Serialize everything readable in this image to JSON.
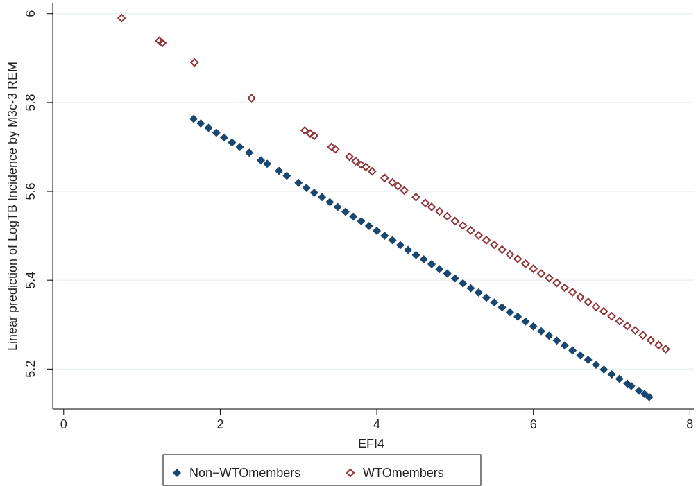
{
  "chart_data": {
    "type": "scatter",
    "xlabel": "EFI4",
    "ylabel": "Linear prediction of LogTB Incidence by M3c-3 REM",
    "xlim": [
      -0.14,
      8.05
    ],
    "ylim": [
      5.11,
      6.023
    ],
    "xticks": [
      0,
      2,
      4,
      6,
      8
    ],
    "yticks": [
      5.2,
      5.4,
      5.6,
      5.8,
      6
    ],
    "grid": "y",
    "legend": "bottom",
    "marker": "diamond",
    "series": [
      {
        "name": "Non−WTOmembers",
        "color": "#1a476f",
        "x": [
          1.66,
          1.75,
          1.85,
          1.95,
          2.05,
          2.15,
          2.25,
          2.37,
          2.52,
          2.6,
          2.75,
          2.85,
          3.0,
          3.1,
          3.2,
          3.3,
          3.4,
          3.5,
          3.6,
          3.7,
          3.8,
          3.9,
          4.0,
          4.1,
          4.2,
          4.3,
          4.4,
          4.5,
          4.6,
          4.7,
          4.8,
          4.9,
          5.0,
          5.1,
          5.2,
          5.3,
          5.4,
          5.5,
          5.6,
          5.7,
          5.8,
          5.9,
          6.0,
          6.1,
          6.2,
          6.3,
          6.4,
          6.5,
          6.6,
          6.7,
          6.8,
          6.9,
          7.0,
          7.1,
          7.2,
          7.25,
          7.35,
          7.42,
          7.48
        ],
        "values": [
          5.763,
          5.753,
          5.743,
          5.732,
          5.721,
          5.71,
          5.7,
          5.687,
          5.67,
          5.662,
          5.646,
          5.635,
          5.619,
          5.608,
          5.597,
          5.587,
          5.576,
          5.565,
          5.554,
          5.543,
          5.533,
          5.522,
          5.511,
          5.5,
          5.49,
          5.479,
          5.468,
          5.457,
          5.447,
          5.436,
          5.425,
          5.415,
          5.404,
          5.393,
          5.382,
          5.372,
          5.361,
          5.35,
          5.339,
          5.328,
          5.318,
          5.307,
          5.296,
          5.285,
          5.275,
          5.264,
          5.253,
          5.242,
          5.231,
          5.221,
          5.21,
          5.199,
          5.188,
          5.178,
          5.167,
          5.162,
          5.151,
          5.144,
          5.137
        ]
      },
      {
        "name": "WTOmembers",
        "color": "#90353b",
        "x": [
          0.74,
          1.22,
          1.26,
          1.67,
          2.4,
          3.08,
          3.15,
          3.2,
          3.42,
          3.47,
          3.65,
          3.73,
          3.8,
          3.86,
          3.94,
          4.1,
          4.2,
          4.27,
          4.35,
          4.5,
          4.62,
          4.7,
          4.8,
          4.9,
          5.0,
          5.1,
          5.2,
          5.3,
          5.4,
          5.5,
          5.6,
          5.7,
          5.8,
          5.9,
          6.0,
          6.1,
          6.2,
          6.3,
          6.4,
          6.5,
          6.6,
          6.7,
          6.8,
          6.9,
          7.0,
          7.1,
          7.2,
          7.3,
          7.4,
          7.5,
          7.6,
          7.69
        ],
        "values": [
          5.99,
          5.939,
          5.934,
          5.89,
          5.81,
          5.737,
          5.73,
          5.725,
          5.7,
          5.695,
          5.678,
          5.668,
          5.66,
          5.655,
          5.645,
          5.63,
          5.62,
          5.612,
          5.602,
          5.587,
          5.574,
          5.565,
          5.555,
          5.544,
          5.533,
          5.523,
          5.512,
          5.501,
          5.49,
          5.48,
          5.469,
          5.458,
          5.448,
          5.437,
          5.426,
          5.415,
          5.405,
          5.394,
          5.383,
          5.373,
          5.362,
          5.351,
          5.34,
          5.33,
          5.319,
          5.308,
          5.297,
          5.287,
          5.276,
          5.265,
          5.254,
          5.245
        ]
      }
    ]
  }
}
